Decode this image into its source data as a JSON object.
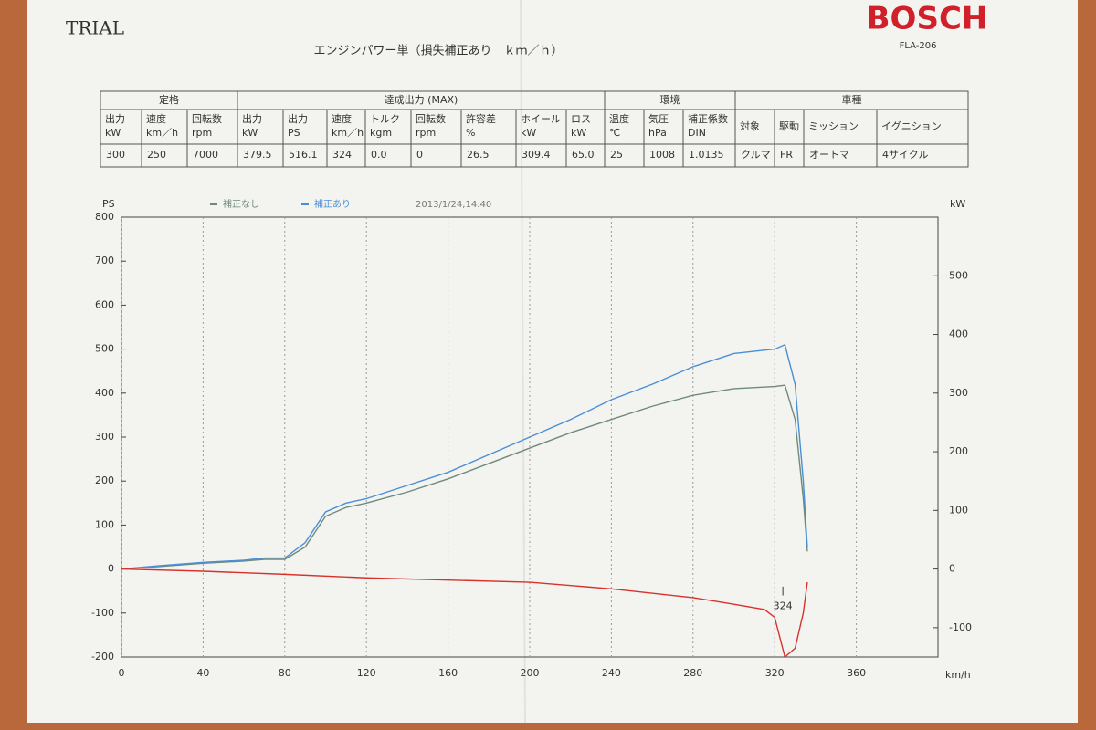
{
  "header": {
    "trial": "TRIAL",
    "brand": "BOSCH",
    "model": "FLA-206",
    "title": "エンジンパワー単（損失補正あり　ｋｍ／ｈ）"
  },
  "table": {
    "groups": [
      "定格",
      "達成出力 (MAX)",
      "環境",
      "車種"
    ],
    "columns": [
      [
        "出力",
        "kW"
      ],
      [
        "速度",
        "km／h"
      ],
      [
        "回転数",
        "rpm"
      ],
      [
        "出力",
        "kW"
      ],
      [
        "出力",
        "PS"
      ],
      [
        "速度",
        "km／h"
      ],
      [
        "トルク",
        "kgm"
      ],
      [
        "回転数",
        "rpm"
      ],
      [
        "許容差",
        "%"
      ],
      [
        "ホイール",
        "kW"
      ],
      [
        "ロス",
        "kW"
      ],
      [
        "温度",
        "℃"
      ],
      [
        "気圧",
        "hPa"
      ],
      [
        "補正係数",
        "DIN"
      ],
      [
        "対象"
      ],
      [
        "駆動"
      ],
      [
        "ミッション"
      ],
      [
        "イグニション"
      ]
    ],
    "row": [
      "300",
      "250",
      "7000",
      "379.5",
      "516.1",
      "324",
      "0.0",
      "0",
      "26.5",
      "309.4",
      "65.0",
      "25",
      "1008",
      "1.0135",
      "クルマ",
      "FR",
      "オートマ",
      "4サイクル"
    ]
  },
  "chart_data": {
    "type": "line",
    "date": "2013/1/24,14:40",
    "ylabel": "PS",
    "y2label": "kW",
    "xlabel": "km/h",
    "xlim": [
      0,
      400
    ],
    "xticks": [
      0,
      40,
      80,
      120,
      160,
      200,
      240,
      280,
      320,
      360
    ],
    "ylim": [
      -200,
      800
    ],
    "yticks": [
      -200,
      -100,
      0,
      100,
      200,
      300,
      400,
      500,
      600,
      700,
      800
    ],
    "y2lim": [
      -150,
      600
    ],
    "y2ticks": [
      -100,
      0,
      100,
      200,
      300,
      400,
      500
    ],
    "grid": true,
    "annotations": [
      {
        "x": 324
      }
    ],
    "series": [
      {
        "name": "補正なし",
        "color": "#6f8a7c",
        "x": [
          0,
          20,
          40,
          60,
          70,
          80,
          90,
          100,
          110,
          120,
          140,
          160,
          180,
          200,
          220,
          240,
          260,
          280,
          300,
          320,
          325,
          330,
          334,
          336
        ],
        "values": [
          0,
          6,
          13,
          18,
          22,
          22,
          50,
          120,
          140,
          150,
          175,
          205,
          240,
          275,
          310,
          340,
          370,
          395,
          410,
          415,
          418,
          340,
          160,
          40
        ]
      },
      {
        "name": "補正あり",
        "color": "#4a8fd6",
        "x": [
          0,
          20,
          40,
          60,
          70,
          80,
          90,
          100,
          110,
          120,
          140,
          160,
          180,
          200,
          220,
          240,
          260,
          280,
          300,
          320,
          325,
          330,
          334,
          336
        ],
        "values": [
          0,
          8,
          15,
          20,
          25,
          25,
          60,
          130,
          150,
          160,
          190,
          220,
          260,
          300,
          340,
          385,
          420,
          460,
          490,
          500,
          510,
          420,
          200,
          50
        ]
      },
      {
        "color": "#d8322b",
        "x": [
          0,
          40,
          80,
          120,
          160,
          200,
          240,
          280,
          300,
          315,
          320,
          325,
          330,
          334,
          336
        ],
        "values": [
          0,
          -5,
          -12,
          -20,
          -25,
          -30,
          -45,
          -65,
          -80,
          -92,
          -110,
          -200,
          -180,
          -100,
          -30
        ]
      }
    ]
  }
}
